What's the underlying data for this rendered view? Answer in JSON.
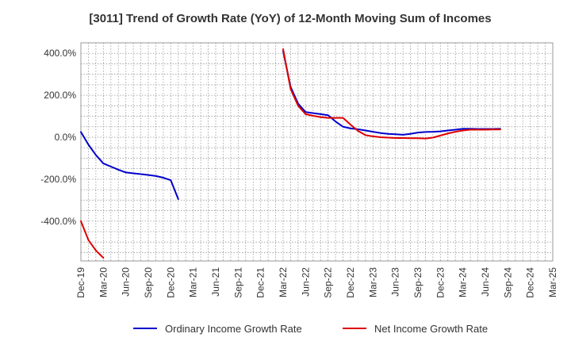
{
  "chart_data": {
    "type": "line",
    "title": "[3011]  Trend of Growth Rate (YoY) of 12-Month Moving Sum of Incomes",
    "xlabel": "",
    "ylabel": "",
    "ylim": [
      -590,
      450
    ],
    "y_ticks": [
      400,
      200,
      0,
      -200,
      -400
    ],
    "y_tick_labels": [
      "400.0%",
      "200.0%",
      "0.0%",
      "-200.0%",
      "-400.0%"
    ],
    "x_tick_labels": [
      "Dec-19",
      "Mar-20",
      "Jun-20",
      "Sep-20",
      "Dec-20",
      "Mar-21",
      "Jun-21",
      "Sep-21",
      "Dec-21",
      "Mar-22",
      "Jun-22",
      "Sep-22",
      "Dec-22",
      "Mar-23",
      "Jun-23",
      "Sep-23",
      "Dec-23",
      "Mar-24",
      "Jun-24",
      "Sep-24",
      "Dec-24",
      "Mar-25"
    ],
    "grid": true,
    "legend_position": "bottom",
    "series": [
      {
        "name": "Ordinary Income Growth Rate",
        "color": "#0000cc",
        "values": [
          25,
          -35,
          -85,
          -125,
          -140,
          -155,
          -168,
          -172,
          -176,
          -180,
          -185,
          -193,
          -205,
          -295,
          null,
          null,
          null,
          null,
          null,
          null,
          null,
          null,
          null,
          null,
          null,
          null,
          null,
          410,
          240,
          160,
          120,
          115,
          110,
          105,
          75,
          50,
          42,
          38,
          32,
          26,
          20,
          16,
          14,
          12,
          16,
          22,
          25,
          26,
          28,
          32,
          36,
          40,
          40,
          39,
          39,
          39,
          40
        ]
      },
      {
        "name": "Net Income Growth Rate",
        "color": "#dd0000",
        "values": [
          -400,
          -490,
          -540,
          -575,
          null,
          null,
          null,
          null,
          null,
          null,
          null,
          null,
          null,
          null,
          null,
          null,
          null,
          null,
          null,
          null,
          null,
          null,
          null,
          null,
          null,
          null,
          null,
          420,
          230,
          150,
          110,
          102,
          96,
          92,
          92,
          92,
          60,
          30,
          10,
          4,
          0,
          -2,
          -4,
          -4,
          -5,
          -5,
          -6,
          -2,
          8,
          18,
          26,
          32,
          36,
          36,
          36,
          37,
          37
        ]
      }
    ]
  }
}
